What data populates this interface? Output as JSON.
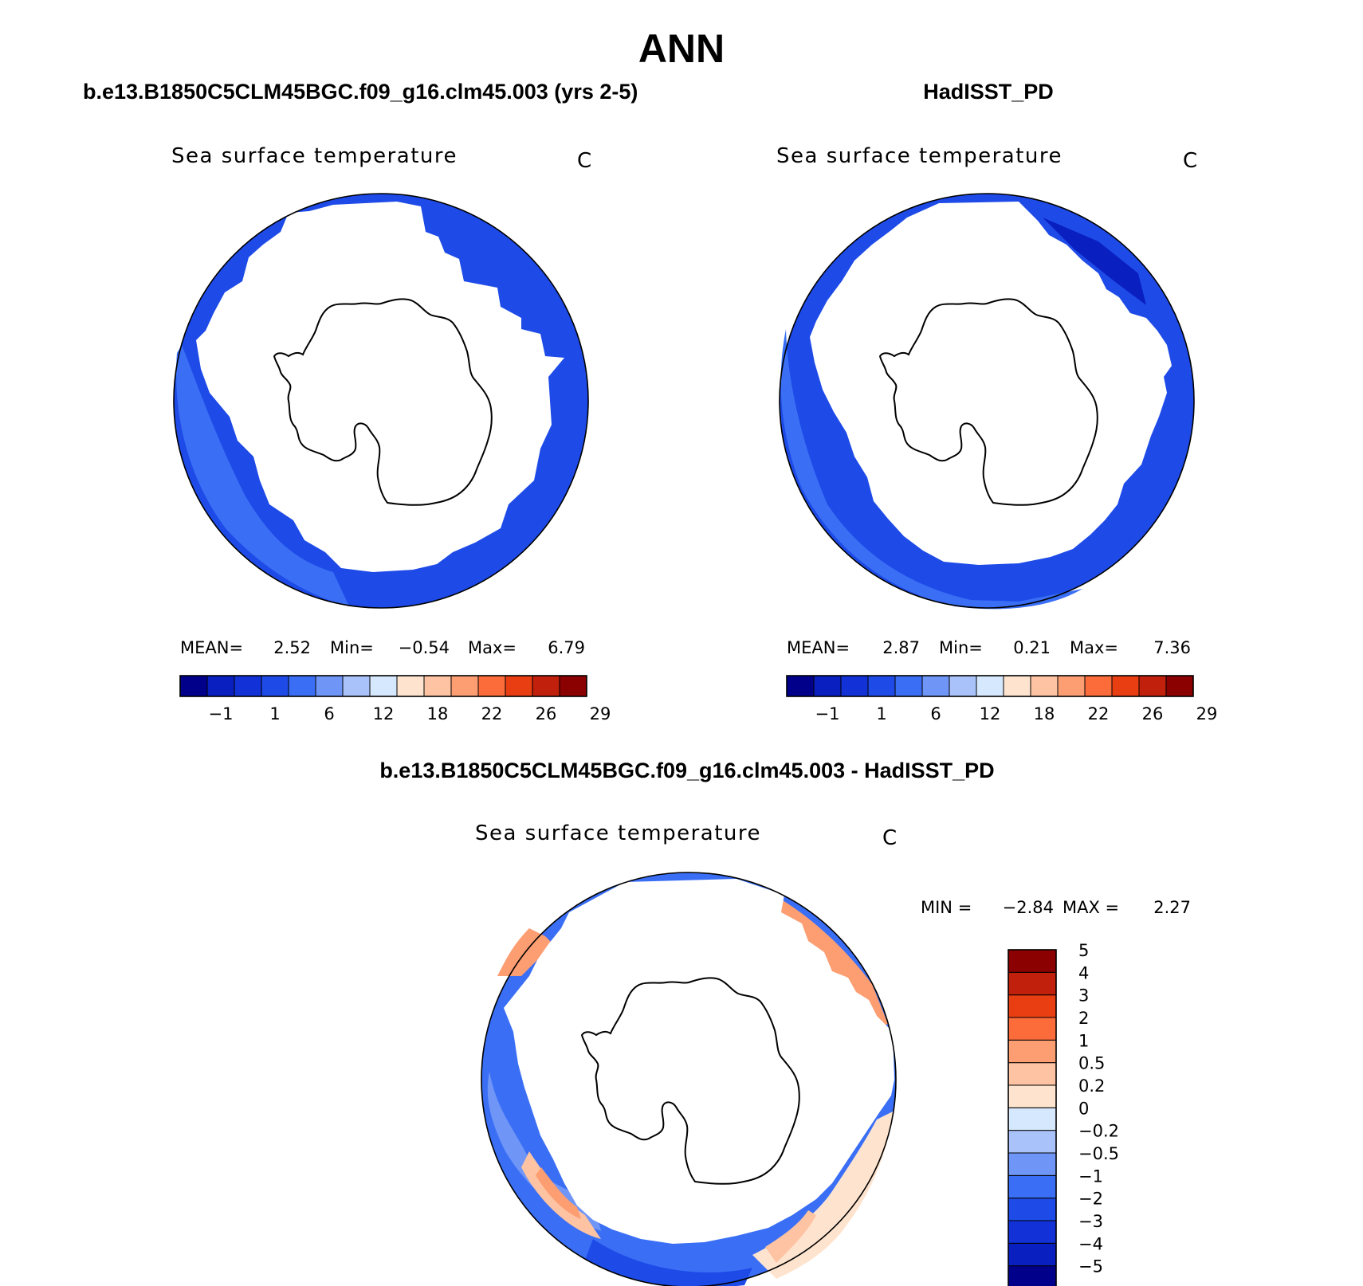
{
  "title": "ANN",
  "ocean_color": "#3a6ff5",
  "panels": [
    {
      "case_title": "b.e13.B1850C5CLM45BGC.f09_g16.clm45.003 (yrs 2-5)",
      "variable_label": "Sea surface temperature",
      "units": "C",
      "stats": {
        "mean_label": "MEAN=",
        "mean": "2.52",
        "min_label": "Min=",
        "min": "−0.54",
        "max_label": "Max=",
        "max": "6.79"
      },
      "colorbar": {
        "colors": [
          "#00008b",
          "#0a1fc0",
          "#1232d8",
          "#1e4be8",
          "#3a6ff5",
          "#6f95f7",
          "#a9c3fa",
          "#d6e8fd",
          "#fee4cf",
          "#fdc3a3",
          "#fc9e72",
          "#fc6c3a",
          "#e83e12",
          "#c0200c",
          "#8b0000"
        ],
        "labels": [
          "−1",
          "1",
          "6",
          "12",
          "18",
          "22",
          "26",
          "29"
        ]
      }
    },
    {
      "case_title": "HadISST_PD",
      "variable_label": "Sea surface temperature",
      "units": "C",
      "stats": {
        "mean_label": "MEAN=",
        "mean": "2.87",
        "min_label": "Min=",
        "min": "0.21",
        "max_label": "Max=",
        "max": "7.36"
      },
      "colorbar": {
        "colors": [
          "#00008b",
          "#0a1fc0",
          "#1232d8",
          "#1e4be8",
          "#3a6ff5",
          "#6f95f7",
          "#a9c3fa",
          "#d6e8fd",
          "#fee4cf",
          "#fdc3a3",
          "#fc9e72",
          "#fc6c3a",
          "#e83e12",
          "#c0200c",
          "#8b0000"
        ],
        "labels": [
          "−1",
          "1",
          "6",
          "12",
          "18",
          "22",
          "26",
          "29"
        ]
      }
    },
    {
      "case_title": "b.e13.B1850C5CLM45BGC.f09_g16.clm45.003 - HadISST_PD",
      "variable_label": "Sea surface temperature",
      "units": "C",
      "stats": {
        "min_label": "MIN =",
        "min": "−2.84",
        "max_label": "MAX =",
        "max": "2.27"
      },
      "colorbar": {
        "colors": [
          "#00008b",
          "#0a1fc0",
          "#1232d8",
          "#1e4be8",
          "#3a6ff5",
          "#6f95f7",
          "#a9c3fa",
          "#d6e8fd",
          "#fee4cf",
          "#fdc3a3",
          "#fc9e72",
          "#fc6c3a",
          "#e83e12",
          "#c0200c",
          "#8b0000"
        ],
        "labels": [
          "−5",
          "−4",
          "−3",
          "−2",
          "−1",
          "−0.5",
          "−0.2",
          "0",
          "0.2",
          "0.5",
          "1",
          "2",
          "3",
          "4",
          "5"
        ]
      }
    }
  ]
}
